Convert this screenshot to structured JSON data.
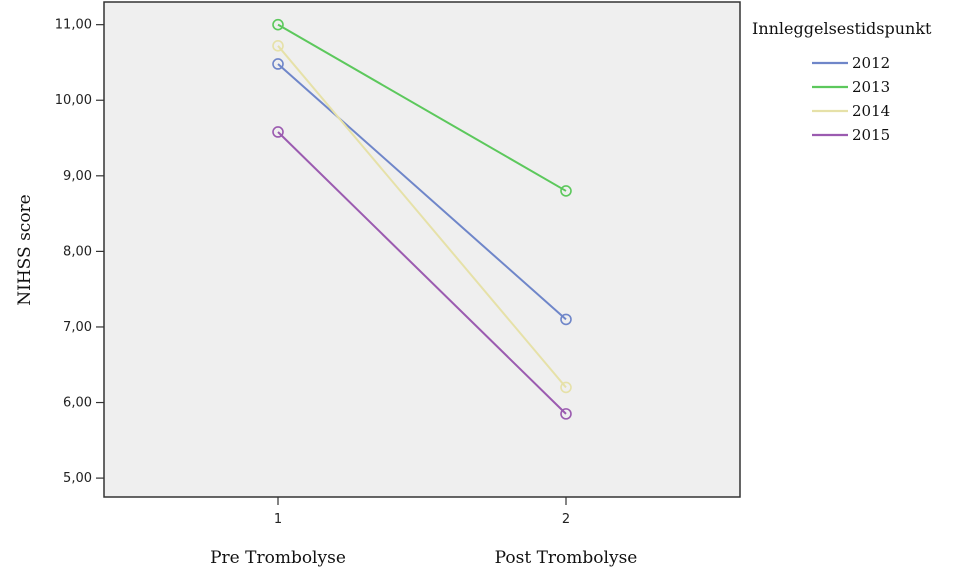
{
  "chart_data": {
    "type": "line",
    "title": "",
    "xlabel": "",
    "ylabel": "NIHSS score",
    "x": [
      1,
      2
    ],
    "x_tick_labels": [
      "1",
      "2"
    ],
    "x_category_labels": [
      "Pre Trombolyse",
      "Post Trombolyse"
    ],
    "y_ticks": [
      "5,00",
      "6,00",
      "7,00",
      "8,00",
      "9,00",
      "10,00",
      "11,00"
    ],
    "ylim": [
      4.75,
      11.3
    ],
    "grid": false,
    "legend": {
      "title": "Innleggelsestidspunkt",
      "placement": "right"
    },
    "series": [
      {
        "name": "2012",
        "color": "#6f86c9",
        "values": [
          10.48,
          7.1
        ]
      },
      {
        "name": "2013",
        "color": "#5cc85c",
        "values": [
          11.0,
          8.8
        ]
      },
      {
        "name": "2014",
        "color": "#e6e1a8",
        "values": [
          10.72,
          6.2
        ]
      },
      {
        "name": "2015",
        "color": "#9b5bb0",
        "values": [
          9.58,
          5.85
        ]
      }
    ]
  }
}
